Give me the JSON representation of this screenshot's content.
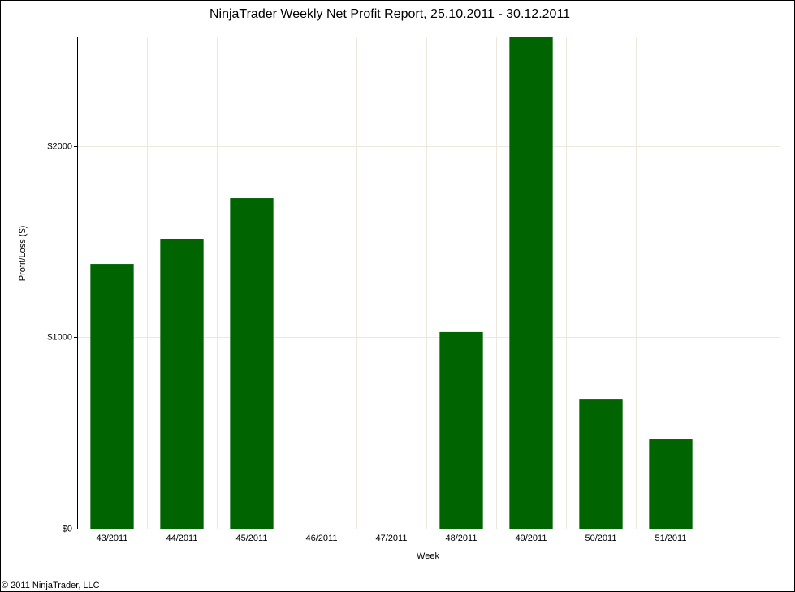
{
  "chart_data": {
    "type": "bar",
    "title": "NinjaTrader Weekly Net Profit Report, 25.10.2011 - 30.12.2011",
    "x_label": "Week",
    "y_label": "Profit/Loss ($)",
    "footer": "© 2011 NinjaTrader, LLC",
    "categories": [
      "43/2011",
      "44/2011",
      "45/2011",
      "46/2011",
      "47/2011",
      "48/2011",
      "49/2011",
      "50/2011",
      "51/2011",
      null
    ],
    "values": [
      1384,
      1516,
      1728,
      0,
      0,
      1028,
      2569,
      679,
      467,
      null
    ],
    "color": "#006400",
    "ylim": [
      0,
      2569
    ],
    "yticks": [
      {
        "value": 0,
        "label": "$0"
      },
      {
        "value": 1000,
        "label": "$1000"
      },
      {
        "value": 2000,
        "label": "$2000"
      }
    ],
    "grid": true
  }
}
